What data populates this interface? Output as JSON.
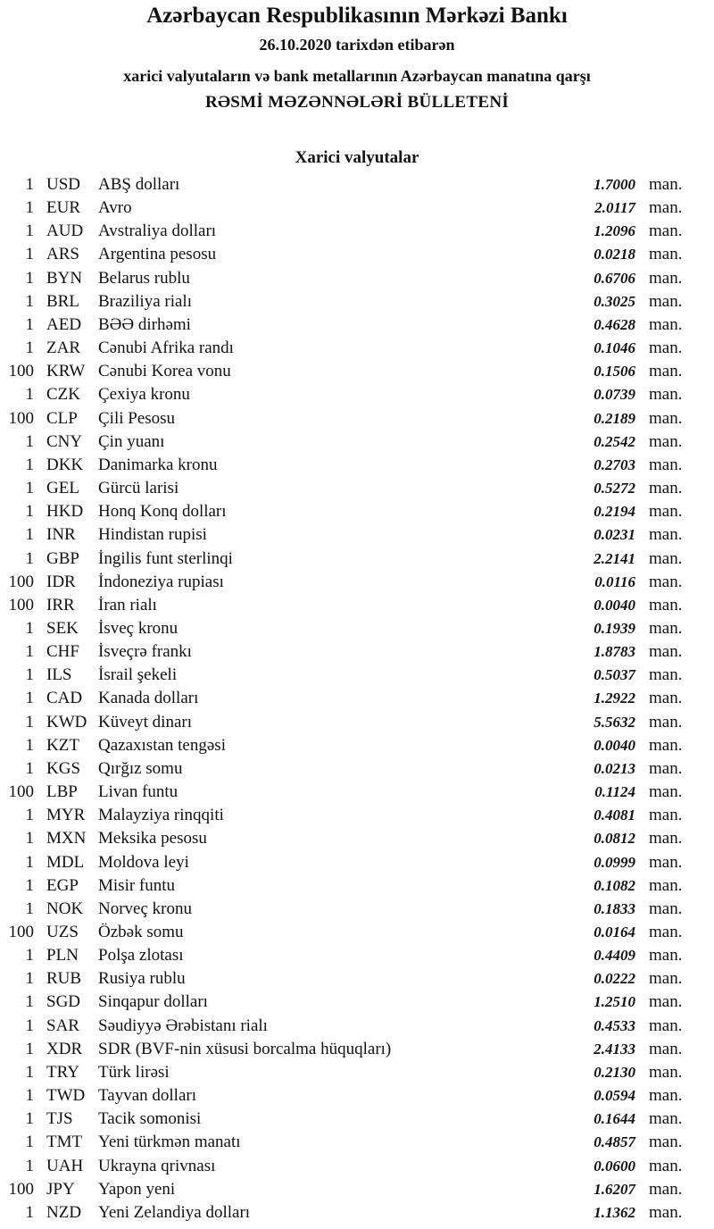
{
  "header": {
    "bank": "Azərbaycan Respublikasının Mərkəzi Bankı",
    "date_line": "26.10.2020  tarixdən etibarən",
    "subtitle": "xarici valyutaların və bank metallarının Azərbaycan manatına qarşı",
    "title": "RƏSMİ MƏZƏNNƏLƏRİ BÜLLETENİ"
  },
  "section_title": "Xarici valyutalar",
  "unit": "man.",
  "rates": [
    {
      "amount": "1",
      "code": "USD",
      "name": "ABŞ dolları",
      "rate": "1.7000"
    },
    {
      "amount": "1",
      "code": "EUR",
      "name": "Avro",
      "rate": "2.0117"
    },
    {
      "amount": "1",
      "code": "AUD",
      "name": "Avstraliya dolları",
      "rate": "1.2096"
    },
    {
      "amount": "1",
      "code": "ARS",
      "name": "Argentina pesosu",
      "rate": "0.0218"
    },
    {
      "amount": "1",
      "code": "BYN",
      "name": "Belarus rublu",
      "rate": "0.6706"
    },
    {
      "amount": "1",
      "code": "BRL",
      "name": "Braziliya rialı",
      "rate": "0.3025"
    },
    {
      "amount": "1",
      "code": "AED",
      "name": "BƏƏ dirhəmi",
      "rate": "0.4628"
    },
    {
      "amount": "1",
      "code": "ZAR",
      "name": "Cənubi Afrika randı",
      "rate": "0.1046"
    },
    {
      "amount": "100",
      "code": "KRW",
      "name": "Cənubi Korea vonu",
      "rate": "0.1506"
    },
    {
      "amount": "1",
      "code": "CZK",
      "name": "Çexiya kronu",
      "rate": "0.0739"
    },
    {
      "amount": "100",
      "code": "CLP",
      "name": "Çili Pesosu",
      "rate": "0.2189"
    },
    {
      "amount": "1",
      "code": "CNY",
      "name": "Çin yuanı",
      "rate": "0.2542"
    },
    {
      "amount": "1",
      "code": "DKK",
      "name": "Danimarka kronu",
      "rate": "0.2703"
    },
    {
      "amount": "1",
      "code": "GEL",
      "name": "Gürcü larisi",
      "rate": "0.5272"
    },
    {
      "amount": "1",
      "code": "HKD",
      "name": "Honq Konq dolları",
      "rate": "0.2194"
    },
    {
      "amount": "1",
      "code": "INR",
      "name": "Hindistan rupisi",
      "rate": "0.0231"
    },
    {
      "amount": "1",
      "code": "GBP",
      "name": "İngilis funt sterlinqi",
      "rate": "2.2141"
    },
    {
      "amount": "100",
      "code": "IDR",
      "name": "İndoneziya rupiası",
      "rate": "0.0116"
    },
    {
      "amount": "100",
      "code": "IRR",
      "name": "İran rialı",
      "rate": "0.0040"
    },
    {
      "amount": "1",
      "code": "SEK",
      "name": "İsveç kronu",
      "rate": "0.1939"
    },
    {
      "amount": "1",
      "code": "CHF",
      "name": "İsveçrə frankı",
      "rate": "1.8783"
    },
    {
      "amount": "1",
      "code": "ILS",
      "name": "İsrail şekeli",
      "rate": "0.5037"
    },
    {
      "amount": "1",
      "code": "CAD",
      "name": "Kanada dolları",
      "rate": "1.2922"
    },
    {
      "amount": "1",
      "code": "KWD",
      "name": "Küveyt dinarı",
      "rate": "5.5632"
    },
    {
      "amount": "1",
      "code": "KZT",
      "name": "Qazaxıstan tengəsi",
      "rate": "0.0040"
    },
    {
      "amount": "1",
      "code": "KGS",
      "name": "Qırğız somu",
      "rate": "0.0213"
    },
    {
      "amount": "100",
      "code": "LBP",
      "name": "Livan funtu",
      "rate": "0.1124"
    },
    {
      "amount": "1",
      "code": "MYR",
      "name": "Malayziya rinqqiti",
      "rate": "0.4081"
    },
    {
      "amount": "1",
      "code": "MXN",
      "name": "Meksika pesosu",
      "rate": "0.0812"
    },
    {
      "amount": "1",
      "code": "MDL",
      "name": "Moldova leyi",
      "rate": "0.0999"
    },
    {
      "amount": "1",
      "code": "EGP",
      "name": "Misir funtu",
      "rate": "0.1082"
    },
    {
      "amount": "1",
      "code": "NOK",
      "name": "Norveç kronu",
      "rate": "0.1833"
    },
    {
      "amount": "100",
      "code": "UZS",
      "name": "Özbək somu",
      "rate": "0.0164"
    },
    {
      "amount": "1",
      "code": "PLN",
      "name": "Polşa zlotası",
      "rate": "0.4409"
    },
    {
      "amount": "1",
      "code": "RUB",
      "name": "Rusiya rublu",
      "rate": "0.0222"
    },
    {
      "amount": "1",
      "code": "SGD",
      "name": "Sinqapur dolları",
      "rate": "1.2510"
    },
    {
      "amount": "1",
      "code": "SAR",
      "name": "Səudiyyə Ərəbistanı rialı",
      "rate": "0.4533"
    },
    {
      "amount": "1",
      "code": "XDR",
      "name": "SDR (BVF-nin xüsusi borcalma hüquqları)",
      "rate": "2.4133"
    },
    {
      "amount": "1",
      "code": "TRY",
      "name": "Türk lirəsi",
      "rate": "0.2130"
    },
    {
      "amount": "1",
      "code": "TWD",
      "name": "Tayvan dolları",
      "rate": "0.0594"
    },
    {
      "amount": "1",
      "code": "TJS",
      "name": "Tacik somonisi",
      "rate": "0.1644"
    },
    {
      "amount": "1",
      "code": "TMT",
      "name": "Yeni türkmən manatı",
      "rate": "0.4857"
    },
    {
      "amount": "1",
      "code": "UAH",
      "name": "Ukrayna qrivnası",
      "rate": "0.0600"
    },
    {
      "amount": "100",
      "code": "JPY",
      "name": "Yapon yeni",
      "rate": "1.6207"
    },
    {
      "amount": "1",
      "code": "NZD",
      "name": "Yeni Zelandiya dolları",
      "rate": "1.1362"
    }
  ]
}
